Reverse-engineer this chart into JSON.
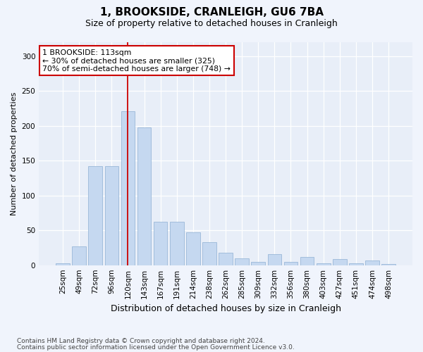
{
  "title": "1, BROOKSIDE, CRANLEIGH, GU6 7BA",
  "subtitle": "Size of property relative to detached houses in Cranleigh",
  "xlabel": "Distribution of detached houses by size in Cranleigh",
  "ylabel": "Number of detached properties",
  "footnote1": "Contains HM Land Registry data © Crown copyright and database right 2024.",
  "footnote2": "Contains public sector information licensed under the Open Government Licence v3.0.",
  "categories": [
    "25sqm",
    "49sqm",
    "72sqm",
    "96sqm",
    "120sqm",
    "143sqm",
    "167sqm",
    "191sqm",
    "214sqm",
    "238sqm",
    "262sqm",
    "285sqm",
    "309sqm",
    "332sqm",
    "356sqm",
    "380sqm",
    "403sqm",
    "427sqm",
    "451sqm",
    "474sqm",
    "498sqm"
  ],
  "values": [
    3,
    27,
    142,
    142,
    221,
    198,
    62,
    62,
    47,
    33,
    18,
    10,
    5,
    16,
    5,
    12,
    3,
    9,
    3,
    7,
    2
  ],
  "bar_color": "#c5d8f0",
  "bar_edge_color": "#9ab8d8",
  "annotation_box_color": "#ffffff",
  "annotation_box_edge": "#cc0000",
  "vline_color": "#cc0000",
  "vline_x_index": 4,
  "annotation_title": "1 BROOKSIDE: 113sqm",
  "annotation_line1": "← 30% of detached houses are smaller (325)",
  "annotation_line2": "70% of semi-detached houses are larger (748) →",
  "bg_color": "#e8eef8",
  "fig_bg_color": "#f0f4fc",
  "ylim": [
    0,
    320
  ],
  "yticks": [
    0,
    50,
    100,
    150,
    200,
    250,
    300
  ],
  "title_fontsize": 11,
  "subtitle_fontsize": 9,
  "axis_label_fontsize": 8,
  "tick_fontsize": 7.5,
  "footnote_fontsize": 6.5,
  "xlabel_fontsize": 9
}
